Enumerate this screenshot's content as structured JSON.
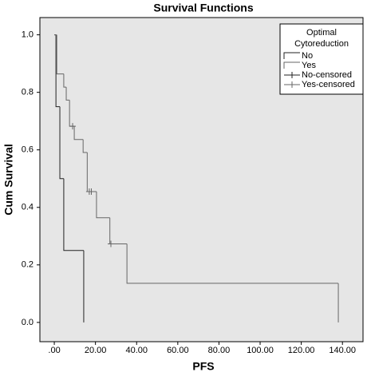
{
  "chart_data": {
    "type": "step",
    "title": "Survival Functions",
    "x_label": "PFS",
    "y_label": "Cum Survival",
    "legend_title": [
      "Optimal",
      "Cytoreduction"
    ],
    "xlim": [
      -7,
      150
    ],
    "ylim": [
      -0.067,
      1.06
    ],
    "xticks": [
      {
        "value": 0,
        "label": ".00"
      },
      {
        "value": 20,
        "label": "20.00"
      },
      {
        "value": 40,
        "label": "40.00"
      },
      {
        "value": 60,
        "label": "60.00"
      },
      {
        "value": 80,
        "label": "80.00"
      },
      {
        "value": 100,
        "label": "100.00"
      },
      {
        "value": 120,
        "label": "120.00"
      },
      {
        "value": 140,
        "label": "140.00"
      }
    ],
    "yticks": [
      {
        "value": 0,
        "label": "0.0"
      },
      {
        "value": 0.2,
        "label": "0.2"
      },
      {
        "value": 0.4,
        "label": "0.4"
      },
      {
        "value": 0.6,
        "label": "0.6"
      },
      {
        "value": 0.8,
        "label": "0.8"
      },
      {
        "value": 1,
        "label": "1.0"
      }
    ],
    "series": [
      {
        "name": "No",
        "color": "#222222",
        "kind": "step",
        "x": [
          0,
          0.8,
          2.7,
          4.6,
          14.3
        ],
        "values": [
          1,
          0.75,
          0.5,
          0.25,
          0
        ]
      },
      {
        "name": "Yes",
        "color": "#666666",
        "kind": "step",
        "x": [
          0,
          1.2,
          4.6,
          5.8,
          7.4,
          9.7,
          14,
          16,
          20.5,
          27,
          35.3,
          138
        ],
        "values": [
          1,
          0.864,
          0.818,
          0.773,
          0.682,
          0.636,
          0.591,
          0.455,
          0.364,
          0.273,
          0.136,
          0
        ]
      },
      {
        "name": "No-censored",
        "color": "#222222",
        "kind": "censor",
        "x": [],
        "values": []
      },
      {
        "name": "Yes-censored",
        "color": "#666666",
        "kind": "censor",
        "x": [
          8.9,
          17,
          18,
          27.5
        ],
        "values": [
          0.682,
          0.455,
          0.455,
          0.273
        ]
      }
    ]
  }
}
